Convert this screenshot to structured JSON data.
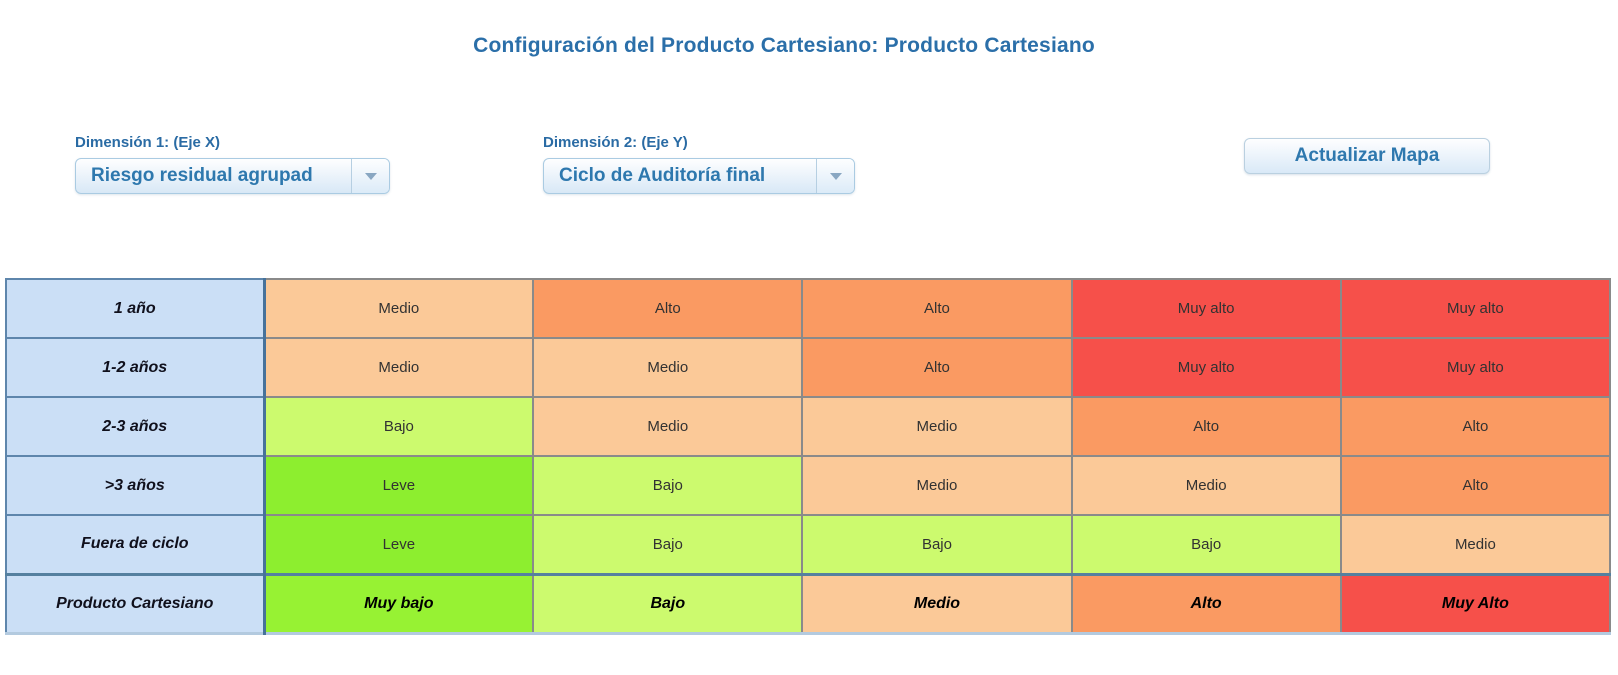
{
  "page": {
    "title": "Configuración del Producto Cartesiano: Producto Cartesiano"
  },
  "controls": {
    "dimension1": {
      "label": "Dimensión 1: (Eje X)",
      "value": "Riesgo residual agrupado"
    },
    "dimension2": {
      "label": "Dimensión 2: (Eje Y)",
      "value": "Ciclo de Auditoría final"
    },
    "update_button_label": "Actualizar Mapa"
  },
  "colors": {
    "title_blue": "#2b6fa9",
    "control_text_blue": "#2e78ae",
    "row_header_bg": "#cbdff6",
    "row_header_border": "#5e86ac",
    "grid_border": "#8a8a8a",
    "level_muy_bajo": "#97f233",
    "level_leve": "#8dee2f",
    "level_bajo": "#ccfa6e",
    "level_medio": "#fbc998",
    "level_alto": "#fa9a62",
    "level_muy_alto": "#f6504a"
  },
  "matrix": {
    "rows": [
      {
        "label": "1 año",
        "cells": [
          {
            "label": "Medio",
            "level": "medio"
          },
          {
            "label": "Alto",
            "level": "alto"
          },
          {
            "label": "Alto",
            "level": "alto"
          },
          {
            "label": "Muy alto",
            "level": "muy_alto"
          },
          {
            "label": "Muy alto",
            "level": "muy_alto"
          }
        ]
      },
      {
        "label": "1-2 años",
        "cells": [
          {
            "label": "Medio",
            "level": "medio"
          },
          {
            "label": "Medio",
            "level": "medio"
          },
          {
            "label": "Alto",
            "level": "alto"
          },
          {
            "label": "Muy alto",
            "level": "muy_alto"
          },
          {
            "label": "Muy alto",
            "level": "muy_alto"
          }
        ]
      },
      {
        "label": "2-3 años",
        "cells": [
          {
            "label": "Bajo",
            "level": "bajo"
          },
          {
            "label": "Medio",
            "level": "medio"
          },
          {
            "label": "Medio",
            "level": "medio"
          },
          {
            "label": "Alto",
            "level": "alto"
          },
          {
            "label": "Alto",
            "level": "alto"
          }
        ]
      },
      {
        "label": ">3 años",
        "cells": [
          {
            "label": "Leve",
            "level": "leve"
          },
          {
            "label": "Bajo",
            "level": "bajo"
          },
          {
            "label": "Medio",
            "level": "medio"
          },
          {
            "label": "Medio",
            "level": "medio"
          },
          {
            "label": "Alto",
            "level": "alto"
          }
        ]
      },
      {
        "label": "Fuera de ciclo",
        "cells": [
          {
            "label": "Leve",
            "level": "leve"
          },
          {
            "label": "Bajo",
            "level": "bajo"
          },
          {
            "label": "Bajo",
            "level": "bajo"
          },
          {
            "label": "Bajo",
            "level": "bajo"
          },
          {
            "label": "Medio",
            "level": "medio"
          }
        ]
      }
    ],
    "footer_row": {
      "label": "Producto Cartesiano",
      "cells": [
        {
          "label": "Muy bajo",
          "level": "muy_bajo"
        },
        {
          "label": "Bajo",
          "level": "bajo"
        },
        {
          "label": "Medio",
          "level": "medio"
        },
        {
          "label": "Alto",
          "level": "alto"
        },
        {
          "label": "Muy Alto",
          "level": "muy_alto"
        }
      ]
    }
  }
}
